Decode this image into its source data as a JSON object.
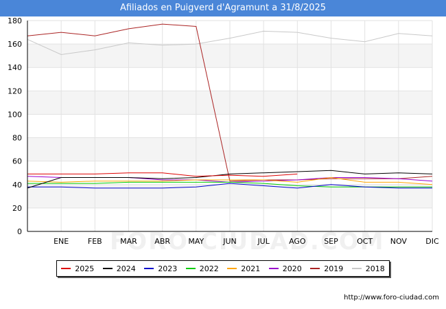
{
  "header": {
    "title": "Afiliados en Puigverd d'Agramunt a 31/8/2025"
  },
  "footer": {
    "url": "http://www.foro-ciudad.com"
  },
  "watermark": {
    "text": "FORO-CIUDAD.COM"
  },
  "chart_data": {
    "type": "line",
    "title": "Afiliados en Puigverd d'Agramunt a 31/8/2025",
    "xlabel": "",
    "ylabel": "",
    "categories": [
      "",
      "ENE",
      "FEB",
      "MAR",
      "ABR",
      "MAY",
      "JUN",
      "JUL",
      "AGO",
      "SEP",
      "OCT",
      "NOV",
      "DIC"
    ],
    "ylim": [
      0,
      180
    ],
    "yticks": [
      0,
      20,
      40,
      60,
      80,
      100,
      120,
      140,
      160,
      180
    ],
    "grid": true,
    "legend_position": "bottom",
    "series": [
      {
        "name": "2025",
        "color": "#dd0000",
        "values": [
          49,
          49,
          49,
          50,
          50,
          47,
          48,
          47,
          49,
          null,
          null,
          null,
          null
        ]
      },
      {
        "name": "2024",
        "color": "#000000",
        "values": [
          37,
          46,
          46,
          46,
          45,
          46,
          49,
          50,
          51,
          52,
          49,
          50,
          49
        ]
      },
      {
        "name": "2023",
        "color": "#0000cc",
        "values": [
          38,
          38,
          37,
          37,
          37,
          38,
          41,
          39,
          37,
          40,
          38,
          37,
          37
        ]
      },
      {
        "name": "2022",
        "color": "#00cc00",
        "values": [
          41,
          41,
          41,
          42,
          42,
          42,
          42,
          41,
          39,
          38,
          38,
          38,
          38
        ]
      },
      {
        "name": "2021",
        "color": "#ffa500",
        "values": [
          43,
          42,
          43,
          43,
          43,
          44,
          44,
          44,
          42,
          46,
          42,
          42,
          40
        ]
      },
      {
        "name": "2020",
        "color": "#9900cc",
        "values": [
          47,
          46,
          46,
          46,
          44,
          44,
          42,
          43,
          44,
          46,
          46,
          45,
          43
        ]
      },
      {
        "name": "2019",
        "color": "#aa2222",
        "values": [
          167,
          170,
          167,
          173,
          177,
          175,
          43,
          44,
          44,
          45,
          45,
          45,
          47
        ]
      },
      {
        "name": "2018",
        "color": "#c8c8c8",
        "values": [
          164,
          151,
          155,
          161,
          159,
          160,
          165,
          171,
          170,
          165,
          162,
          169,
          167
        ]
      }
    ]
  }
}
